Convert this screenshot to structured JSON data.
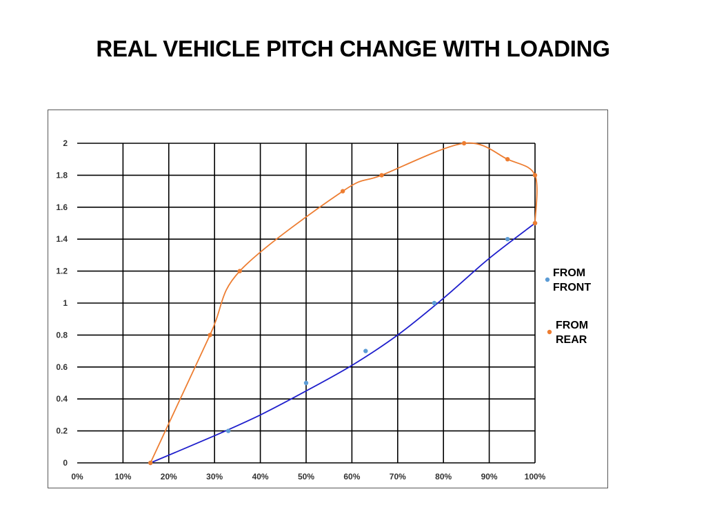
{
  "title": "REAL VEHICLE PITCH CHANGE WITH LOADING",
  "colors": {
    "front_line": "#1f1fcc",
    "front_marker": "#5b9bd5",
    "rear_line": "#ed7d31",
    "rear_marker": "#ed7d31",
    "grid": "#000000"
  },
  "chart_data": {
    "type": "scatter",
    "title": "REAL VEHICLE PITCH CHANGE WITH LOADING",
    "xlabel": "",
    "ylabel": "",
    "xlim": [
      0,
      1
    ],
    "ylim": [
      0,
      2
    ],
    "x_ticks": [
      "0%",
      "10%",
      "20%",
      "30%",
      "40%",
      "50%",
      "60%",
      "70%",
      "80%",
      "90%",
      "100%"
    ],
    "y_ticks": [
      "0",
      "0.2",
      "0.4",
      "0.6",
      "0.8",
      "1",
      "1.2",
      "1.4",
      "1.6",
      "1.8",
      "2"
    ],
    "grid": true,
    "legend_position": "right",
    "series": [
      {
        "name": "FROM FRONT",
        "legend_lines": [
          "FROM",
          "FRONT"
        ],
        "markers": [
          [
            0.16,
            0
          ],
          [
            0.33,
            0.2
          ],
          [
            0.5,
            0.5
          ],
          [
            0.63,
            0.7
          ],
          [
            0.78,
            1.0
          ],
          [
            0.94,
            1.4
          ],
          [
            1.0,
            1.5
          ]
        ],
        "trend": [
          [
            0.16,
            0
          ],
          [
            0.3,
            0.17
          ],
          [
            0.4,
            0.3
          ],
          [
            0.5,
            0.45
          ],
          [
            0.6,
            0.61
          ],
          [
            0.7,
            0.8
          ],
          [
            0.8,
            1.03
          ],
          [
            0.9,
            1.28
          ],
          [
            1.0,
            1.5
          ]
        ]
      },
      {
        "name": "FROM REAR",
        "legend_lines": [
          "FROM",
          "REAR"
        ],
        "markers": [
          [
            0.16,
            0
          ],
          [
            0.29,
            0.8
          ],
          [
            0.355,
            1.2
          ],
          [
            0.58,
            1.7
          ],
          [
            0.665,
            1.8
          ],
          [
            0.845,
            2.0
          ],
          [
            0.94,
            1.9
          ],
          [
            1.0,
            1.8
          ],
          [
            1.0,
            1.5
          ]
        ],
        "trend": [
          [
            0.16,
            0
          ],
          [
            0.29,
            0.8
          ],
          [
            0.355,
            1.2
          ],
          [
            0.58,
            1.7
          ],
          [
            0.665,
            1.8
          ],
          [
            0.845,
            2.0
          ],
          [
            0.94,
            1.9
          ],
          [
            1.0,
            1.8
          ],
          [
            1.0,
            1.5
          ]
        ]
      }
    ]
  }
}
